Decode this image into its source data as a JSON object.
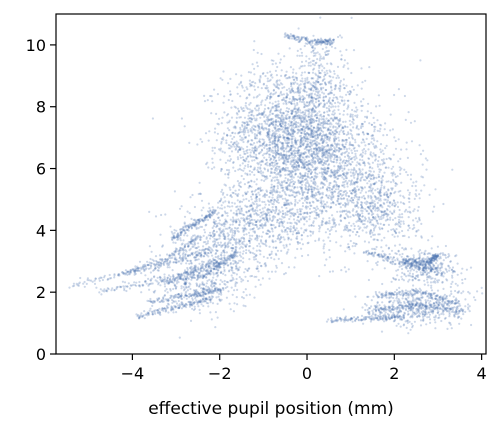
{
  "chart_data": {
    "type": "scatter",
    "title": "",
    "xlabel": "effective pupil position (mm)",
    "ylabel": "",
    "xlim": [
      -5.75,
      4.1
    ],
    "ylim": [
      0,
      11
    ],
    "xticks": [
      -4,
      -2,
      0,
      2,
      4
    ],
    "yticks": [
      0,
      2,
      4,
      6,
      8,
      10
    ],
    "grid": false,
    "legend": "none",
    "marker_color": "#4c72b0",
    "marker_alpha": 0.28,
    "clusters": [
      {
        "center": [
          -0.3,
          7.1
        ],
        "spread": [
          0.8,
          1.1
        ],
        "count": 2400
      },
      {
        "center": [
          0.6,
          5.8
        ],
        "spread": [
          0.9,
          0.9
        ],
        "count": 900
      },
      {
        "center": [
          1.6,
          4.6
        ],
        "spread": [
          0.5,
          0.7
        ],
        "count": 500
      },
      {
        "center": [
          -1.0,
          4.3
        ],
        "spread": [
          0.8,
          0.6
        ],
        "count": 700
      },
      {
        "center": [
          -2.0,
          3.3
        ],
        "spread": [
          0.5,
          0.6
        ],
        "count": 400
      },
      {
        "center": [
          -2.5,
          2.3
        ],
        "spread": [
          0.6,
          0.5
        ],
        "count": 350
      },
      {
        "center": [
          2.7,
          2.8
        ],
        "spread": [
          0.4,
          0.3
        ],
        "count": 300
      },
      {
        "center": [
          2.6,
          1.5
        ],
        "spread": [
          0.6,
          0.3
        ],
        "count": 450
      },
      {
        "center": [
          0.3,
          9.2
        ],
        "spread": [
          0.3,
          0.6
        ],
        "count": 150
      }
    ],
    "trails": [
      [
        [
          -5.4,
          2.2
        ],
        [
          -3.5,
          2.8
        ],
        [
          -2.2,
          3.4
        ]
      ],
      [
        [
          -4.8,
          2.0
        ],
        [
          -3.0,
          2.5
        ],
        [
          -2.0,
          3.0
        ]
      ],
      [
        [
          -4.2,
          2.6
        ],
        [
          -3.2,
          3.1
        ],
        [
          -2.4,
          3.8
        ]
      ],
      [
        [
          -3.9,
          1.2
        ],
        [
          -3.0,
          1.5
        ],
        [
          -2.2,
          1.8
        ]
      ],
      [
        [
          -3.6,
          1.7
        ],
        [
          -2.6,
          1.9
        ],
        [
          -1.9,
          2.1
        ]
      ],
      [
        [
          -3.3,
          2.3
        ],
        [
          -2.3,
          2.6
        ],
        [
          -1.6,
          3.3
        ]
      ],
      [
        [
          -3.1,
          3.7
        ],
        [
          -2.6,
          4.2
        ],
        [
          -2.1,
          4.6
        ]
      ],
      [
        [
          0.5,
          1.1
        ],
        [
          1.5,
          1.15
        ],
        [
          2.2,
          1.2
        ]
      ],
      [
        [
          1.4,
          1.4
        ],
        [
          2.5,
          1.6
        ],
        [
          3.6,
          1.4
        ]
      ],
      [
        [
          1.6,
          1.9
        ],
        [
          2.6,
          2.0
        ],
        [
          3.5,
          1.6
        ]
      ],
      [
        [
          1.4,
          3.3
        ],
        [
          2.3,
          2.9
        ],
        [
          3.0,
          2.7
        ]
      ],
      [
        [
          2.2,
          3.0
        ],
        [
          2.8,
          3.0
        ],
        [
          3.0,
          3.2
        ]
      ],
      [
        [
          -0.5,
          10.3
        ],
        [
          0.2,
          10.1
        ],
        [
          0.6,
          10.1
        ]
      ]
    ]
  }
}
